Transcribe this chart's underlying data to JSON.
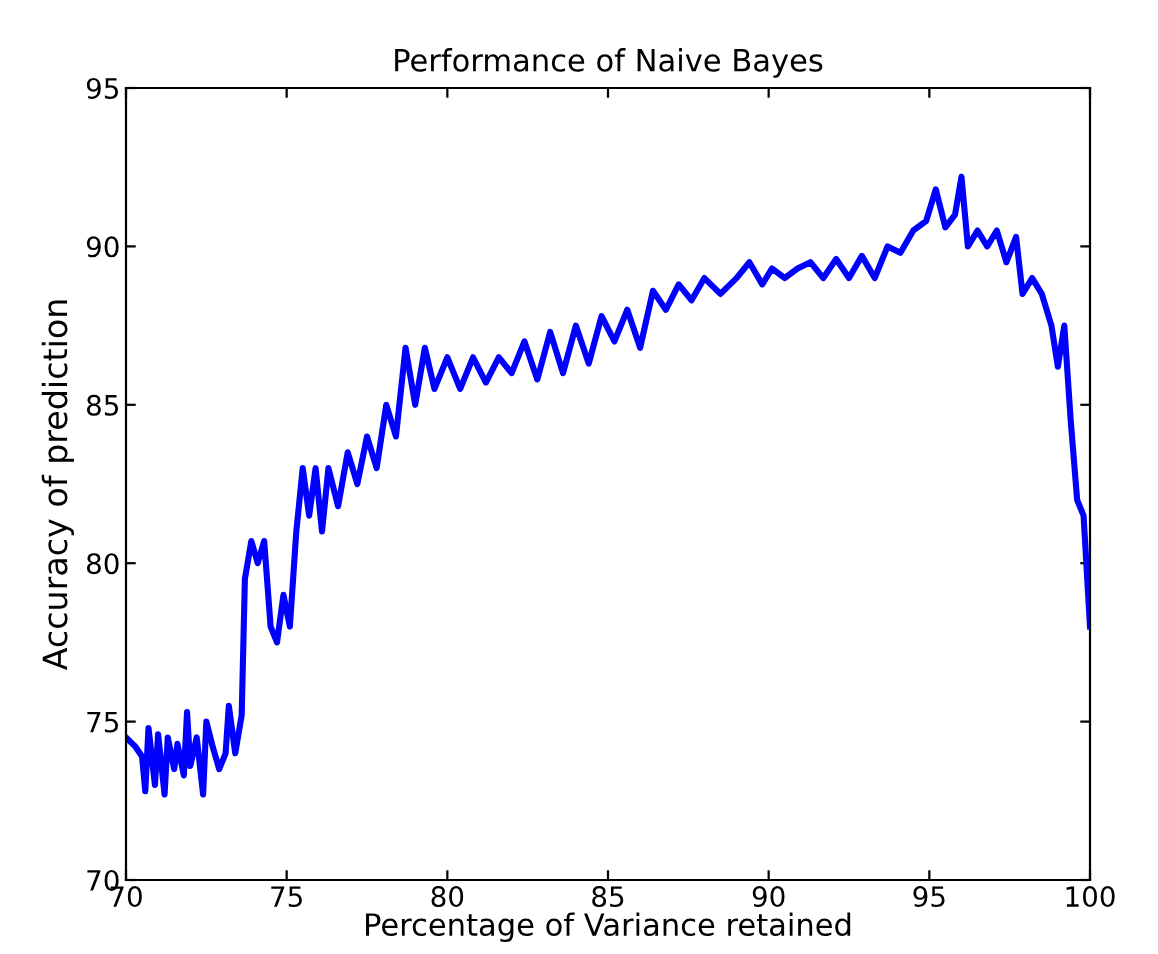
{
  "chart_data": {
    "type": "line",
    "title": "Performance of Naive Bayes",
    "xlabel": "Percentage of Variance retained",
    "ylabel": "Accuracy of prediction",
    "xlim": [
      70,
      100
    ],
    "xticks": [
      70,
      75,
      80,
      85,
      90,
      95,
      100
    ],
    "ylim": [
      70,
      95
    ],
    "yticks": [
      70,
      75,
      80,
      85,
      90,
      95
    ],
    "grid": false,
    "marker": "none",
    "line_style": "solid",
    "series": [
      {
        "color": "#0000ff",
        "x": [
          70.0,
          70.3,
          70.5,
          70.6,
          70.7,
          70.9,
          71.0,
          71.2,
          71.3,
          71.5,
          71.6,
          71.8,
          71.9,
          72.0,
          72.2,
          72.4,
          72.5,
          72.7,
          72.9,
          73.1,
          73.2,
          73.4,
          73.6,
          73.7,
          73.9,
          74.1,
          74.3,
          74.5,
          74.7,
          74.9,
          75.1,
          75.3,
          75.5,
          75.7,
          75.9,
          76.1,
          76.3,
          76.6,
          76.9,
          77.2,
          77.5,
          77.8,
          78.1,
          78.4,
          78.7,
          79.0,
          79.3,
          79.6,
          80.0,
          80.4,
          80.8,
          81.2,
          81.6,
          82.0,
          82.4,
          82.8,
          83.2,
          83.6,
          84.0,
          84.4,
          84.8,
          85.2,
          85.6,
          86.0,
          86.4,
          86.8,
          87.2,
          87.6,
          88.0,
          88.5,
          89.0,
          89.4,
          89.8,
          90.1,
          90.5,
          90.9,
          91.3,
          91.7,
          92.1,
          92.5,
          92.9,
          93.3,
          93.7,
          94.1,
          94.5,
          94.9,
          95.2,
          95.5,
          95.8,
          96.0,
          96.2,
          96.5,
          96.8,
          97.1,
          97.4,
          97.7,
          97.9,
          98.2,
          98.5,
          98.8,
          99.0,
          99.2,
          99.4,
          99.6,
          99.8,
          100.0
        ],
        "values": [
          74.5,
          74.2,
          73.9,
          72.8,
          74.8,
          73.0,
          74.6,
          72.7,
          74.5,
          73.5,
          74.3,
          73.3,
          75.3,
          73.6,
          74.5,
          72.7,
          75.0,
          74.2,
          73.5,
          74.0,
          75.5,
          74.0,
          75.2,
          79.5,
          80.7,
          80.0,
          80.7,
          78.0,
          77.5,
          79.0,
          78.0,
          81.0,
          83.0,
          81.5,
          83.0,
          81.0,
          83.0,
          81.8,
          83.5,
          82.5,
          84.0,
          83.0,
          85.0,
          84.0,
          86.8,
          85.0,
          86.8,
          85.5,
          86.5,
          85.5,
          86.5,
          85.7,
          86.5,
          86.0,
          87.0,
          85.8,
          87.3,
          86.0,
          87.5,
          86.3,
          87.8,
          87.0,
          88.0,
          86.8,
          88.6,
          88.0,
          88.8,
          88.3,
          89.0,
          88.5,
          89.0,
          89.5,
          88.8,
          89.3,
          89.0,
          89.3,
          89.5,
          89.0,
          89.6,
          89.0,
          89.7,
          89.0,
          90.0,
          89.8,
          90.5,
          90.8,
          91.8,
          90.6,
          91.0,
          92.2,
          90.0,
          90.5,
          90.0,
          90.5,
          89.5,
          90.3,
          88.5,
          89.0,
          88.5,
          87.5,
          86.2,
          87.5,
          84.5,
          82.0,
          81.5,
          78.0
        ]
      }
    ]
  }
}
